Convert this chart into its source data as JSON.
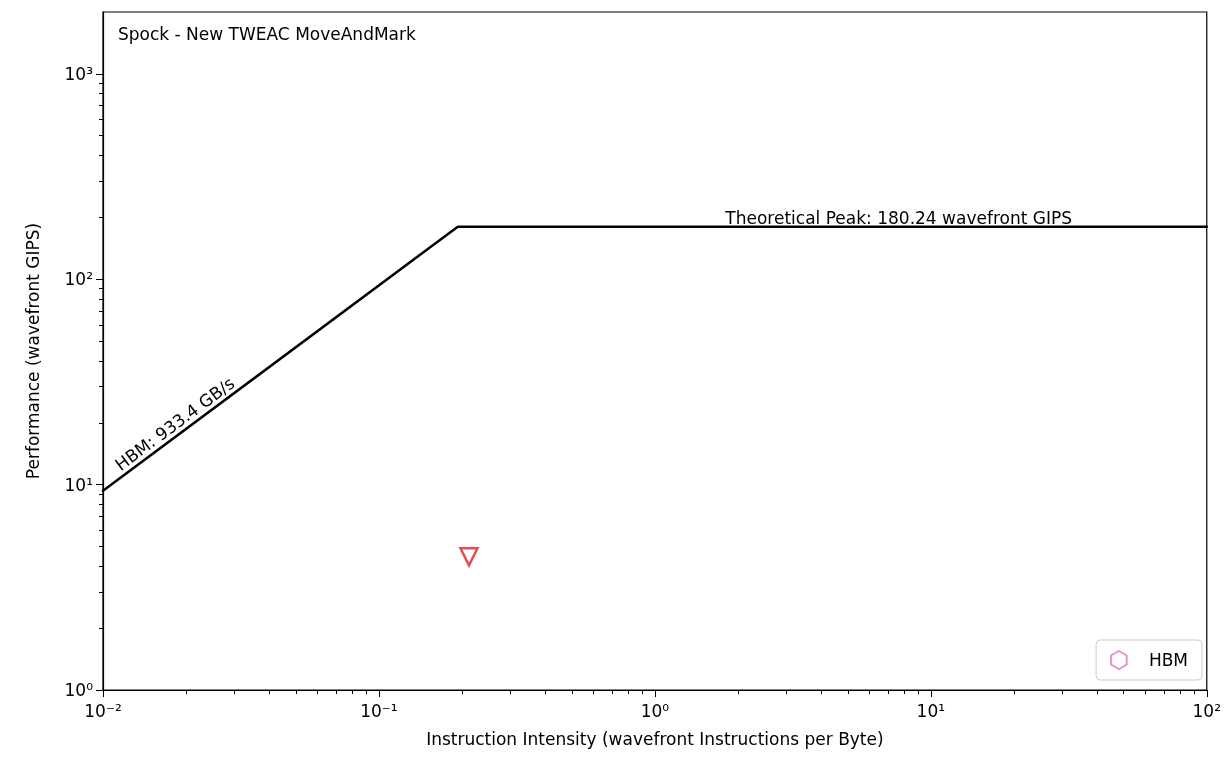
{
  "chart_data": {
    "type": "line",
    "title": "Spock - New TWEAC MoveAndMark",
    "xlabel": "Instruction Intensity (wavefront Instructions per Byte)",
    "ylabel": "Performance (wavefront GIPS)",
    "log": "xy",
    "xlim": [
      0.01,
      100
    ],
    "ylim": [
      1,
      2000
    ],
    "xticks": [
      {
        "value": 0.01,
        "label": "10⁻²"
      },
      {
        "value": 0.1,
        "label": "10⁻¹"
      },
      {
        "value": 1,
        "label": "10⁰"
      },
      {
        "value": 10,
        "label": "10¹"
      },
      {
        "value": 100,
        "label": "10²"
      }
    ],
    "yticks": [
      {
        "value": 1,
        "label": "10⁰"
      },
      {
        "value": 10,
        "label": "10¹"
      },
      {
        "value": 100,
        "label": "10²"
      },
      {
        "value": 1000,
        "label": "10³"
      }
    ],
    "series": [
      {
        "color": "#000000",
        "x": [
          0.01,
          0.1931,
          100
        ],
        "values": [
          9.334,
          180.24,
          180.24
        ],
        "marker": "none",
        "line_style": "solid"
      },
      {
        "type": "scatter",
        "color": "#d62728",
        "x": [
          0.212
        ],
        "values": [
          4.45
        ],
        "marker": "triangle_down"
      },
      {
        "type": "scatter",
        "name": "HBM",
        "color": "#e377c2",
        "marker": "hexagon"
      }
    ],
    "legend": "bottom right",
    "annotations": [
      "HBM: 933.4 GB/s",
      {
        "text": "Theoretical Peak: 180.24 wavefront GIPS",
        "x": 1.8,
        "y": 180.24
      }
    ]
  }
}
